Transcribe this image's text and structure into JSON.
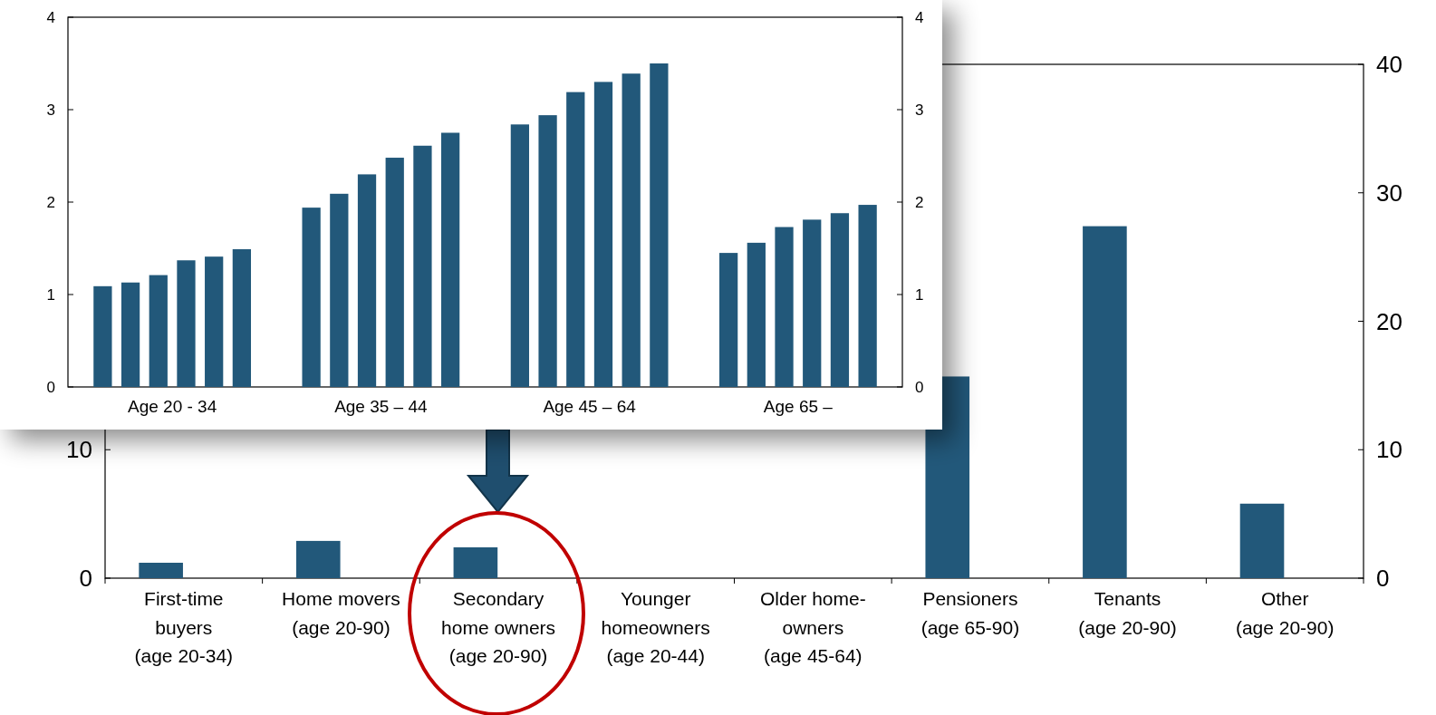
{
  "chart_data": [
    {
      "type": "bar",
      "categories": [
        "First-time\nbuyers\n(age 20-34)",
        "Home movers\n(age 20-90)",
        "Secondary\nhome owners\n(age 20-90)",
        "Younger\nhomeowners\n(age 20-44)",
        "Older home-\nowners\n(age 45-64)",
        "Pensioners\n(age 65-90)",
        "Tenants\n(age 20-90)",
        "Other\n(age 20-90)"
      ],
      "values": [
        1.2,
        2.9,
        2.4,
        null,
        null,
        15.7,
        27.4,
        5.8
      ],
      "color": "#22587a",
      "ylim": [
        0,
        40
      ],
      "yticks": [
        0,
        10
      ],
      "y2lim": [
        0,
        40
      ],
      "y2ticks": [
        0,
        10,
        20,
        30,
        40
      ],
      "grid": false
    },
    {
      "type": "bar",
      "categories": [
        "Age 20 - 34",
        "Age 35 – 44",
        "Age 45 – 64",
        "Age 65 –"
      ],
      "series": [
        {
          "color": "#22587a",
          "values": [
            1.09,
            1.94,
            2.84,
            1.45
          ]
        },
        {
          "color": "#22587a",
          "values": [
            1.13,
            2.09,
            2.94,
            1.56
          ]
        },
        {
          "color": "#22587a",
          "values": [
            1.21,
            2.3,
            3.19,
            1.73
          ]
        },
        {
          "color": "#22587a",
          "values": [
            1.37,
            2.48,
            3.3,
            1.81
          ]
        },
        {
          "color": "#22587a",
          "values": [
            1.41,
            2.61,
            3.39,
            1.88
          ]
        },
        {
          "color": "#22587a",
          "values": [
            1.49,
            2.75,
            3.5,
            1.97
          ]
        }
      ],
      "ylim": [
        0,
        4
      ],
      "yticks": [
        0,
        1,
        2,
        3,
        4
      ],
      "y2lim": [
        0,
        4
      ],
      "y2ticks": [
        0,
        1,
        2,
        3,
        4
      ],
      "grid": false
    }
  ]
}
